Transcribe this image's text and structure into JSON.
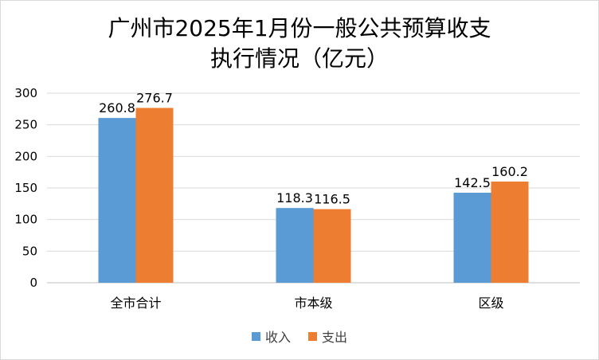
{
  "chart_data": {
    "type": "bar",
    "title_lines": [
      "广州市2025年1月份一般公共预算收支",
      "执行情况（亿元）"
    ],
    "categories": [
      "全市合计",
      "市本级",
      "区级"
    ],
    "series": [
      {
        "name": "收入",
        "values": [
          260.8,
          118.3,
          142.5
        ],
        "color": "#5B9BD5"
      },
      {
        "name": "支出",
        "values": [
          276.7,
          116.5,
          160.2
        ],
        "color": "#ED7D31"
      }
    ],
    "ylim": [
      0,
      300
    ],
    "yticks": [
      0,
      50,
      100,
      150,
      200,
      250,
      300
    ],
    "grid": true,
    "legend_position": "bottom"
  }
}
